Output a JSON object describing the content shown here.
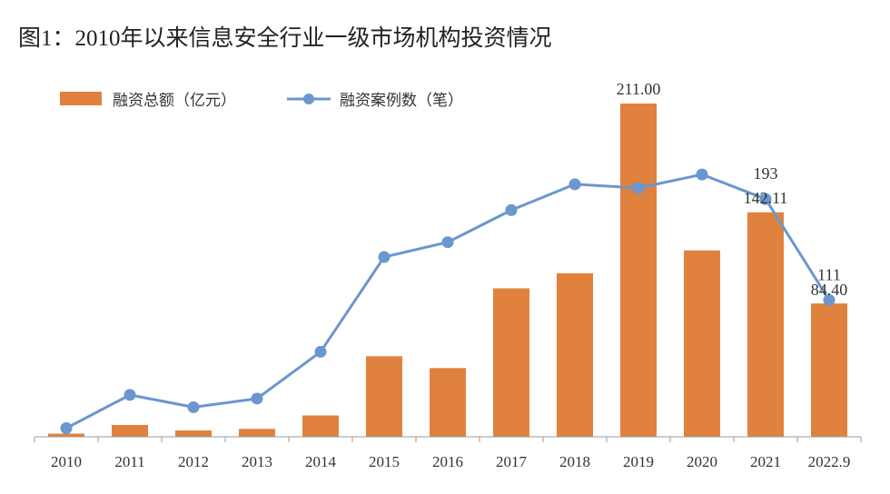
{
  "title": "图1：2010年以来信息安全行业一级市场机构投资情况",
  "legend": {
    "bar_label": "融资总额（亿元）",
    "line_label": "融资案例数（笔）"
  },
  "colors": {
    "bar": "#E0823E",
    "line": "#6A97CE",
    "axis": "#999999"
  },
  "chart_data": {
    "type": "bar+line",
    "categories": [
      "2010",
      "2011",
      "2012",
      "2013",
      "2014",
      "2015",
      "2016",
      "2017",
      "2018",
      "2019",
      "2020",
      "2021",
      "2022.9"
    ],
    "series": [
      {
        "name": "融资总额（亿元）",
        "type": "bar",
        "values": [
          2.0,
          7.5,
          4.0,
          5.0,
          13.5,
          51.0,
          43.5,
          94.0,
          103.5,
          211.0,
          118.0,
          142.11,
          84.4
        ]
      },
      {
        "name": "融资案例数（笔）",
        "type": "line",
        "values": [
          7,
          34,
          24,
          31,
          69,
          146,
          158,
          184,
          205,
          202,
          213,
          193,
          111
        ]
      }
    ],
    "data_labels": [
      {
        "series": 0,
        "index": 9,
        "text": "211.00"
      },
      {
        "series": 1,
        "index": 11,
        "text": "193"
      },
      {
        "series": 0,
        "index": 11,
        "text": "142.11"
      },
      {
        "series": 1,
        "index": 12,
        "text": "111"
      },
      {
        "series": 0,
        "index": 12,
        "text": "84.40"
      }
    ],
    "bar_axis_range": [
      0,
      211
    ],
    "line_axis_range": [
      0,
      275
    ],
    "grid": false,
    "legend_position": "top-left"
  }
}
